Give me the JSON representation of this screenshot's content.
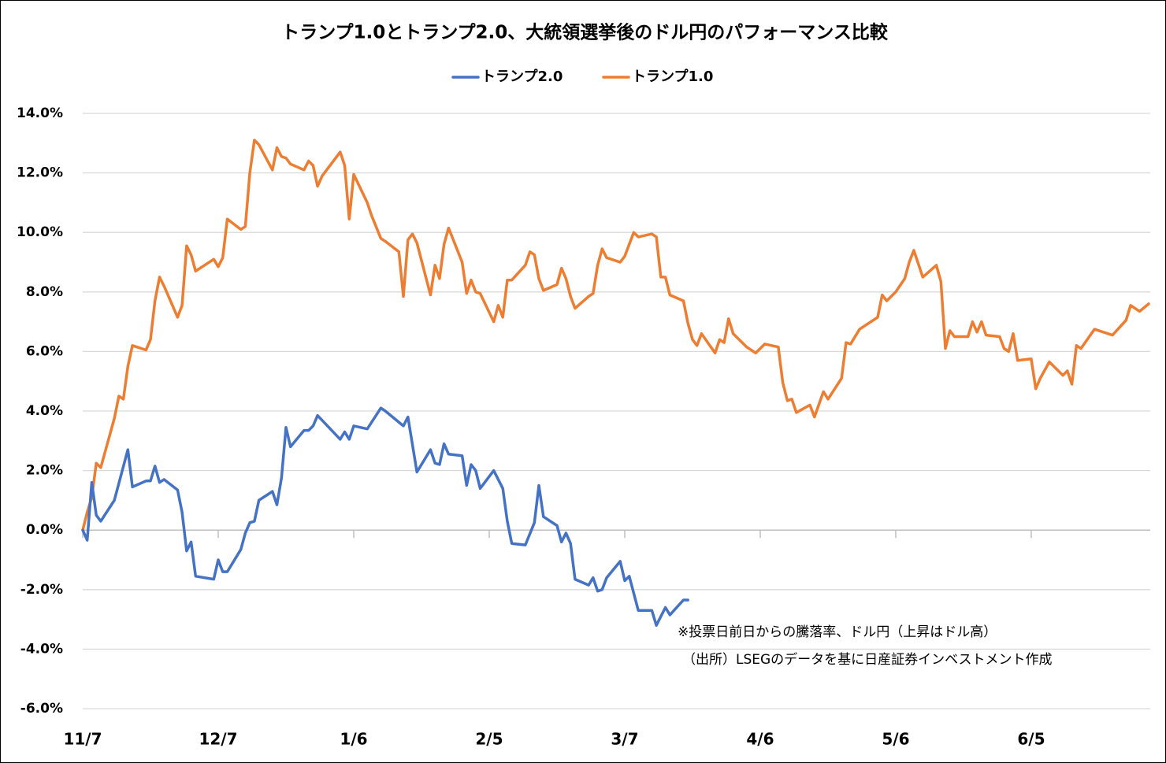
{
  "chart_data": {
    "type": "line",
    "title": "トランプ1.0とトランプ2.0、大統領選挙後のドル円のパフォーマンス比較",
    "annotations": [
      "※投票日前日からの騰落率、ドル円（上昇はドル高）",
      "（出所）LSEGのデータを基に日産証券インベストメント作成"
    ],
    "xlim": [
      0,
      236
    ],
    "xticks": [
      {
        "value": 0,
        "label": "11/7"
      },
      {
        "value": 30,
        "label": "12/7"
      },
      {
        "value": 60,
        "label": "1/6"
      },
      {
        "value": 90,
        "label": "2/5"
      },
      {
        "value": 120,
        "label": "3/7"
      },
      {
        "value": 150,
        "label": "4/6"
      },
      {
        "value": 180,
        "label": "5/6"
      },
      {
        "value": 210,
        "label": "6/5"
      }
    ],
    "ylim": [
      -6,
      14
    ],
    "yticks": [
      {
        "value": -6,
        "label": "-6.0%"
      },
      {
        "value": -4,
        "label": "-4.0%"
      },
      {
        "value": -2,
        "label": "-2.0%"
      },
      {
        "value": 0,
        "label": "0.0%"
      },
      {
        "value": 2,
        "label": "2.0%"
      },
      {
        "value": 4,
        "label": "4.0%"
      },
      {
        "value": 6,
        "label": "6.0%"
      },
      {
        "value": 8,
        "label": "8.0%"
      },
      {
        "value": 10,
        "label": "10.0%"
      },
      {
        "value": 12,
        "label": "12.0%"
      },
      {
        "value": 14,
        "label": "14.0%"
      }
    ],
    "grid": true,
    "legend": "top",
    "series": [
      {
        "name": "トランプ2.0",
        "color": "#4472c4",
        "x": [
          0,
          1,
          2,
          3,
          4,
          7,
          10,
          11,
          14,
          15,
          16,
          17,
          18,
          21,
          22,
          23,
          24,
          25,
          29,
          30,
          31,
          32,
          35,
          36,
          37,
          38,
          39,
          42,
          43,
          44,
          45,
          46,
          49,
          50,
          51,
          52,
          57,
          58,
          59,
          60,
          63,
          66,
          67,
          71,
          72,
          74,
          77,
          78,
          79,
          80,
          81,
          84,
          85,
          86,
          87,
          88,
          91,
          93,
          94,
          95,
          98,
          100,
          101,
          102,
          105,
          106,
          107,
          108,
          109,
          112,
          113,
          114,
          115,
          116,
          119,
          120,
          121,
          123,
          126,
          127,
          129,
          130,
          133,
          134
        ],
        "values": [
          0,
          -0.34,
          1.6,
          0.5,
          0.3,
          1.0,
          2.7,
          1.45,
          1.65,
          1.65,
          2.15,
          1.6,
          1.7,
          1.35,
          0.6,
          -0.7,
          -0.4,
          -1.55,
          -1.65,
          -1.0,
          -1.4,
          -1.4,
          -0.65,
          -0.1,
          0.25,
          0.3,
          1.0,
          1.3,
          0.85,
          1.75,
          3.45,
          2.8,
          3.35,
          3.35,
          3.5,
          3.85,
          3.05,
          3.3,
          3.05,
          3.5,
          3.4,
          4.1,
          4.0,
          3.5,
          3.8,
          1.95,
          2.7,
          2.25,
          2.2,
          2.9,
          2.55,
          2.5,
          1.5,
          2.2,
          2.0,
          1.4,
          2.0,
          1.4,
          0.3,
          -0.45,
          -0.5,
          0.25,
          1.5,
          0.45,
          0.15,
          -0.4,
          -0.1,
          -0.45,
          -1.65,
          -1.85,
          -1.6,
          -2.05,
          -2.0,
          -1.6,
          -1.05,
          -1.7,
          -1.55,
          -2.7,
          -2.7,
          -3.2,
          -2.6,
          -2.85,
          -2.35,
          -2.35
        ]
      },
      {
        "name": "トランプ1.0",
        "color": "#ed7d31",
        "x": [
          0,
          1,
          2,
          3,
          4,
          7,
          8,
          9,
          10,
          11,
          14,
          15,
          16,
          17,
          18,
          21,
          22,
          23,
          24,
          25,
          29,
          30,
          31,
          32,
          35,
          36,
          37,
          38,
          39,
          42,
          43,
          44,
          45,
          46,
          49,
          50,
          51,
          52,
          53,
          57,
          58,
          59,
          60,
          63,
          64,
          66,
          67,
          70,
          71,
          72,
          73,
          74,
          77,
          78,
          79,
          80,
          81,
          84,
          85,
          86,
          87,
          88,
          91,
          92,
          93,
          94,
          95,
          98,
          99,
          100,
          101,
          102,
          105,
          106,
          107,
          108,
          109,
          112,
          113,
          114,
          115,
          116,
          119,
          120,
          121,
          122,
          123,
          126,
          127,
          128,
          129,
          130,
          133,
          134,
          135,
          136,
          137,
          140,
          141,
          142,
          143,
          144,
          147,
          149,
          151,
          154,
          155,
          156,
          157,
          158,
          161,
          162,
          164,
          165,
          168,
          169,
          170,
          172,
          176,
          177,
          178,
          180,
          182,
          183,
          184,
          186,
          189,
          190,
          191,
          192,
          193,
          196,
          197,
          198,
          199,
          200,
          203,
          204,
          205,
          206,
          207,
          210,
          211,
          212,
          214,
          217,
          218,
          219,
          220,
          221,
          224,
          228,
          231,
          232,
          234,
          236
        ],
        "values": [
          0,
          0.6,
          1.1,
          2.25,
          2.1,
          3.75,
          4.5,
          4.4,
          5.5,
          6.2,
          6.05,
          6.4,
          7.7,
          8.5,
          8.2,
          7.15,
          7.55,
          9.55,
          9.25,
          8.7,
          9.1,
          8.85,
          9.15,
          10.45,
          10.1,
          10.2,
          12.0,
          13.1,
          12.95,
          12.1,
          12.85,
          12.55,
          12.5,
          12.3,
          12.1,
          12.4,
          12.25,
          11.55,
          11.9,
          12.7,
          12.25,
          10.45,
          11.95,
          11.0,
          10.55,
          9.8,
          9.7,
          9.35,
          7.85,
          9.75,
          9.95,
          9.65,
          7.9,
          8.9,
          8.45,
          9.6,
          10.15,
          9.0,
          7.95,
          8.4,
          8.0,
          7.95,
          7.0,
          7.55,
          7.15,
          8.4,
          8.4,
          8.9,
          9.35,
          9.25,
          8.45,
          8.05,
          8.25,
          8.8,
          8.45,
          7.85,
          7.45,
          7.85,
          7.95,
          8.9,
          9.45,
          9.15,
          9.0,
          9.2,
          9.6,
          10.0,
          9.85,
          9.95,
          9.85,
          8.5,
          8.5,
          7.9,
          7.7,
          6.95,
          6.4,
          6.2,
          6.6,
          5.95,
          6.4,
          6.3,
          7.1,
          6.6,
          6.15,
          5.95,
          6.25,
          6.15,
          4.95,
          4.35,
          4.4,
          3.95,
          4.2,
          3.8,
          4.65,
          4.4,
          5.1,
          6.3,
          6.25,
          6.75,
          7.15,
          7.9,
          7.7,
          8.0,
          8.45,
          9.0,
          9.4,
          8.5,
          8.9,
          8.35,
          6.1,
          6.7,
          6.5,
          6.5,
          7.0,
          6.65,
          7.0,
          6.55,
          6.5,
          6.1,
          6.0,
          6.6,
          5.7,
          5.75,
          4.75,
          5.1,
          5.65,
          5.2,
          5.35,
          4.9,
          6.2,
          6.1,
          6.75,
          6.55,
          7.05,
          7.55,
          7.35,
          7.6
        ]
      }
    ]
  }
}
